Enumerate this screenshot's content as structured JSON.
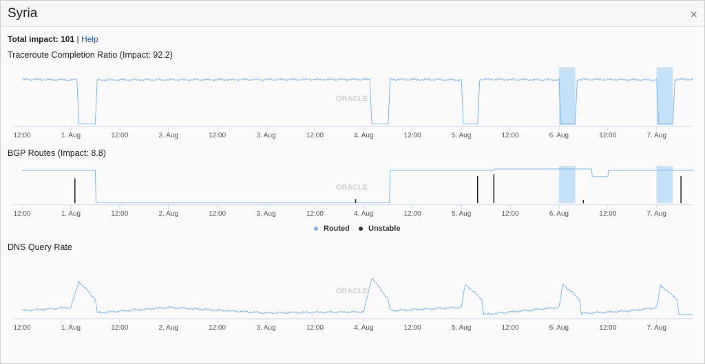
{
  "header": {
    "title": "Syria",
    "close_label": "×"
  },
  "impact": {
    "label": "Total impact:",
    "value": "101",
    "separator": "|",
    "help_label": "Help"
  },
  "charts": {
    "traceroute": {
      "title": "Traceroute Completion Ratio (Impact: 92.2)"
    },
    "bgp": {
      "title": "BGP Routes (Impact: 8.8)"
    },
    "dns": {
      "title": "DNS Query Rate"
    }
  },
  "legend": [
    {
      "name": "Routed",
      "color": "#7cb5ec"
    },
    {
      "name": "Unstable",
      "color": "#333333"
    }
  ],
  "watermark": "ORACLE",
  "colors": {
    "series": "#7cb5ec",
    "band": "#c6e0f5",
    "unstable": "#222222"
  },
  "chart_data": [
    {
      "type": "line",
      "title": "Traceroute Completion Ratio (Impact: 92.2)",
      "x_tick_labels": [
        "12:00",
        "1. Aug",
        "12:00",
        "2. Aug",
        "12:00",
        "3. Aug",
        "12:00",
        "4. Aug",
        "12:00",
        "5. Aug",
        "12:00",
        "6. Aug",
        "12:00",
        "7. Aug"
      ],
      "xlim_hours": [
        0,
        165
      ],
      "series": [
        {
          "points": [
            [
              0,
              0.83
            ],
            [
              13.5,
              0.82
            ],
            [
              14,
              0.02
            ],
            [
              18,
              0.02
            ],
            [
              18.5,
              0.82
            ],
            [
              85.5,
              0.83
            ],
            [
              86,
              0.02
            ],
            [
              90,
              0.02
            ],
            [
              90.5,
              0.83
            ],
            [
              108,
              0.82
            ],
            [
              108.5,
              0.02
            ],
            [
              112,
              0.02
            ],
            [
              112.5,
              0.83
            ],
            [
              132,
              0.82
            ],
            [
              132.5,
              0.02
            ],
            [
              136,
              0.02
            ],
            [
              136.5,
              0.83
            ],
            [
              156,
              0.82
            ],
            [
              156.5,
              0.02
            ],
            [
              160,
              0.02
            ],
            [
              160.5,
              0.83
            ],
            [
              165,
              0.83
            ]
          ]
        }
      ],
      "highlight_bands_hours": [
        [
          132,
          136
        ],
        [
          156,
          160
        ]
      ],
      "ylim": [
        0,
        1
      ]
    },
    {
      "type": "line",
      "title": "BGP Routes (Impact: 8.8)",
      "x_tick_labels": [
        "12:00",
        "1. Aug",
        "12:00",
        "2. Aug",
        "12:00",
        "3. Aug",
        "12:00",
        "4. Aug",
        "12:00",
        "5. Aug",
        "12:00",
        "6. Aug",
        "12:00",
        "7. Aug"
      ],
      "xlim_hours": [
        0,
        165
      ],
      "series": [
        {
          "name": "Routed",
          "points": [
            [
              0,
              0.96
            ],
            [
              18,
              0.96
            ],
            [
              18.2,
              0.02
            ],
            [
              86,
              0.02
            ],
            [
              90.3,
              0.02
            ],
            [
              90.5,
              0.96
            ],
            [
              114,
              0.96
            ],
            [
              116,
              0.96
            ],
            [
              116.2,
              1.0
            ],
            [
              140,
              1.0
            ],
            [
              140.2,
              0.77
            ],
            [
              144,
              0.77
            ],
            [
              144.2,
              0.96
            ],
            [
              165,
              0.96
            ]
          ]
        },
        {
          "name": "Unstable",
          "spikes_hours": [
            [
              13,
              0.73
            ],
            [
              82,
              0.12
            ],
            [
              112,
              0.8
            ],
            [
              116,
              0.85
            ],
            [
              138,
              0.1
            ],
            [
              162,
              0.8
            ]
          ]
        }
      ],
      "highlight_bands_hours": [
        [
          132,
          136
        ],
        [
          156,
          160
        ]
      ],
      "ylim": [
        0,
        1
      ]
    },
    {
      "type": "line",
      "title": "DNS Query Rate",
      "x_tick_labels": [
        "12:00",
        "1. Aug",
        "12:00",
        "2. Aug",
        "12:00",
        "3. Aug",
        "12:00",
        "4. Aug",
        "12:00",
        "5. Aug",
        "12:00",
        "6. Aug",
        "12:00",
        "7. Aug"
      ],
      "xlim_hours": [
        0,
        165
      ],
      "series": [
        {
          "points": [
            [
              0,
              0.12
            ],
            [
              12,
              0.18
            ],
            [
              14,
              0.65
            ],
            [
              18,
              0.33
            ],
            [
              18.5,
              0.08
            ],
            [
              36,
              0.18
            ],
            [
              60,
              0.08
            ],
            [
              84,
              0.1
            ],
            [
              86,
              0.72
            ],
            [
              90,
              0.33
            ],
            [
              90.5,
              0.12
            ],
            [
              108,
              0.18
            ],
            [
              109,
              0.6
            ],
            [
              113,
              0.33
            ],
            [
              113.5,
              0.05
            ],
            [
              132,
              0.18
            ],
            [
              133,
              0.6
            ],
            [
              137,
              0.33
            ],
            [
              137.5,
              0.07
            ],
            [
              150,
              0.12
            ],
            [
              156,
              0.18
            ],
            [
              157,
              0.58
            ],
            [
              161,
              0.33
            ],
            [
              161.5,
              0.05
            ],
            [
              165,
              0.05
            ]
          ]
        }
      ],
      "ylim": [
        0,
        1
      ]
    }
  ]
}
